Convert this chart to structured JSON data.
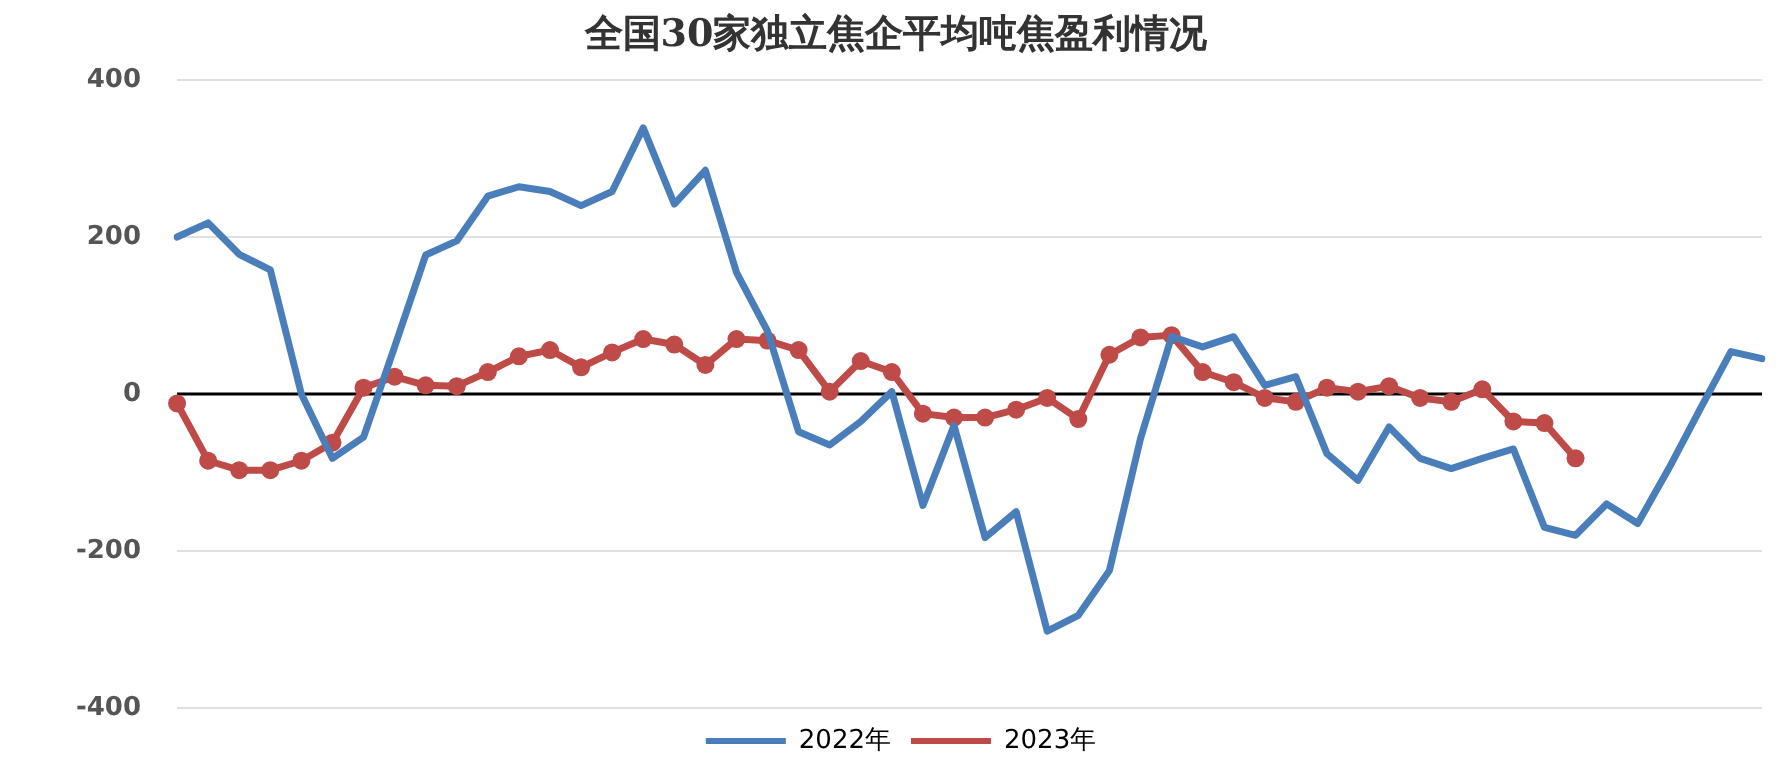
{
  "chart_data": {
    "type": "line",
    "title": "全国30家独立焦企平均吨焦盈利情况",
    "categories": [
      null,
      null,
      null,
      null,
      null,
      null,
      null,
      null,
      null,
      null,
      null,
      null,
      null,
      null,
      null,
      null,
      null,
      null,
      null,
      null,
      null,
      null,
      null,
      null,
      null,
      null,
      null,
      null,
      null,
      null,
      null,
      null,
      null,
      null,
      null,
      null,
      null,
      null,
      null,
      null,
      null,
      null,
      null,
      null,
      null,
      null,
      null,
      null,
      null,
      null,
      null,
      null
    ],
    "series": [
      {
        "name": "2022年",
        "color": "#4a7ebb",
        "marker": "none",
        "values": [
          200,
          218,
          178,
          158,
          0,
          -82,
          -55,
          60,
          177,
          195,
          252,
          264,
          258,
          240,
          258,
          339,
          242,
          285,
          155,
          80,
          -48,
          -65,
          -35,
          3,
          -142,
          -40,
          -183,
          -150,
          -302,
          -282,
          -225,
          -57,
          73,
          60,
          73,
          11,
          22,
          -76,
          -110,
          -42,
          -82,
          -95,
          -82,
          -70,
          -170,
          -180,
          -140,
          -165,
          -95,
          -20,
          54,
          45
        ]
      },
      {
        "name": "2023年",
        "color": "#be4b48",
        "marker": "circle",
        "values": [
          -12,
          -85,
          -97,
          -97,
          -85,
          -62,
          8,
          22,
          11,
          10,
          28,
          48,
          56,
          34,
          53,
          70,
          63,
          37,
          70,
          68,
          56,
          3,
          42,
          28,
          -25,
          -30,
          -30,
          -20,
          -5,
          -32,
          50,
          72,
          75,
          28,
          15,
          -5,
          -10,
          8,
          3,
          10,
          -5,
          -10,
          6,
          -35,
          -37,
          -82,
          null,
          null,
          null,
          null,
          null,
          null
        ]
      }
    ],
    "ylim": [
      -400,
      400
    ],
    "yticks": [
      -400,
      -200,
      0,
      200,
      400
    ],
    "grid": "y",
    "legend": "bottom",
    "tick_labels": "y"
  }
}
